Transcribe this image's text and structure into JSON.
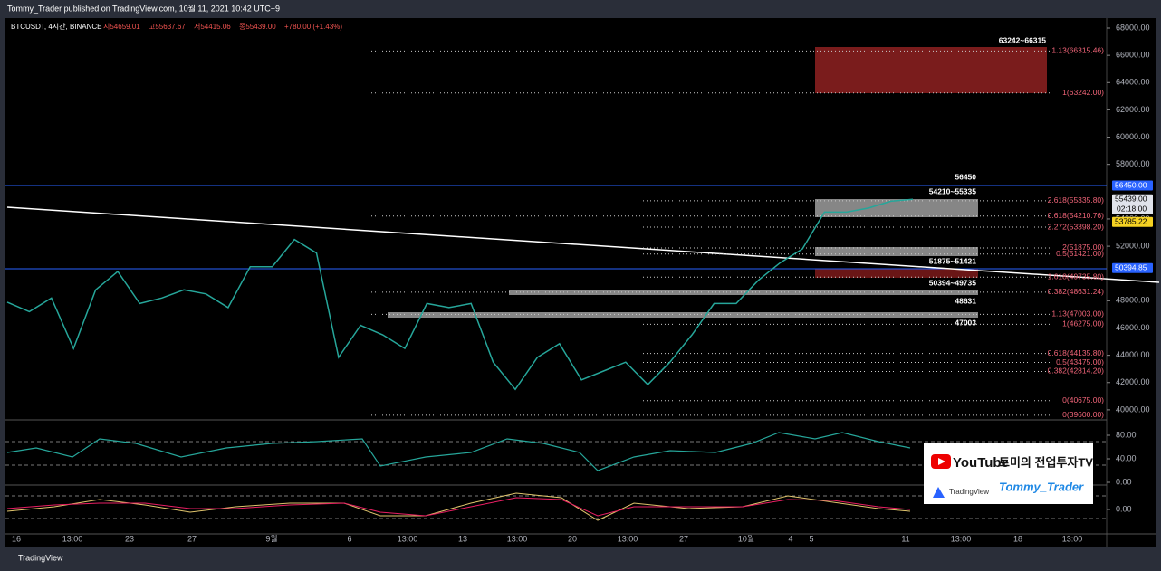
{
  "header": {
    "text": "Tommy_Trader published on TradingView.com, 10월 11, 2021 10:42 UTC+9"
  },
  "chart_data": {
    "type": "line",
    "symbol": "BTCUSDT, 4시간, BINANCE",
    "ohlc": [
      "시54659.01",
      "고55637.67",
      "저54415.06",
      "종55439.00"
    ],
    "change": "+780.00 (+1.43%)",
    "values": [
      47900,
      47200,
      48200,
      44500,
      48800,
      50150,
      47800,
      48200,
      48800,
      48500,
      47500,
      50500,
      50500,
      52500,
      51500,
      43850,
      46200,
      45500,
      44500,
      47800,
      47500,
      47800,
      43500,
      41500,
      43850,
      44850,
      42200,
      42850,
      43500,
      41850,
      43500,
      45500,
      47800,
      47800,
      49500,
      50800,
      51800,
      54500,
      54500,
      54800,
      55300,
      55439
    ],
    "color": "#26a69a",
    "ylim": [
      39330,
      68730
    ],
    "yticks": [
      {
        "value": 40000,
        "label": "40000.00"
      },
      {
        "value": 42000,
        "label": "42000.00"
      },
      {
        "value": 44000,
        "label": "44000.00"
      },
      {
        "value": 46000,
        "label": "46000.00"
      },
      {
        "value": 48000,
        "label": "48000.00"
      },
      {
        "value": 52000,
        "label": "52000.00"
      },
      {
        "value": 54000,
        "label": "54000.00"
      },
      {
        "value": 58000,
        "label": "58000.00"
      },
      {
        "value": 60000,
        "label": "60000.00"
      },
      {
        "value": 62000,
        "label": "62000.00"
      },
      {
        "value": 64000,
        "label": "64000.00"
      },
      {
        "value": 66000,
        "label": "66000.00"
      },
      {
        "value": 68000,
        "label": "68000.00"
      }
    ],
    "price_labels": [
      {
        "value": 56450,
        "label": "56450.00",
        "color": "#2962ff"
      },
      {
        "value": 55439,
        "label": "55439.00",
        "color": "#e0e3eb"
      },
      {
        "value": 53785.22,
        "label": "53785.22",
        "color": "#f5d223"
      },
      {
        "value": 50394.85,
        "label": "50394.85",
        "color": "#2962ff"
      }
    ],
    "countdown": "02:18:00",
    "levels": [
      {
        "value": 66315.46,
        "label": "1.13(66315.46)"
      },
      {
        "value": 63242,
        "label": "1(63242.00)"
      },
      {
        "value": 55335.8,
        "label": "2.618(55335.80)"
      },
      {
        "value": 54210.76,
        "label": "0.618(54210.76)"
      },
      {
        "value": 53398.2,
        "label": "2.272(53398.20)"
      },
      {
        "value": 51875,
        "label": "2(51875.00)"
      },
      {
        "value": 51421,
        "label": "0.5(51421.00)"
      },
      {
        "value": 49735.8,
        "label": "1.618(49735.80)"
      },
      {
        "value": 48631.24,
        "label": "0.382(48631.24)"
      },
      {
        "value": 47003,
        "label": "1.13(47003.00)"
      },
      {
        "value": 46275,
        "label": "1(46275.00)"
      },
      {
        "value": 44135.8,
        "label": "0.618(44135.80)"
      },
      {
        "value": 43475,
        "label": "0.5(43475.00)"
      },
      {
        "value": 42814.2,
        "label": "0.382(42814.20)"
      },
      {
        "value": 40675,
        "label": "0(40675.00)"
      },
      {
        "value": 39600,
        "label": "0(39600.00)"
      }
    ],
    "zones": [
      "63242~66315",
      "56450",
      "54210~55335",
      "51875~51421",
      "50394~49735",
      "48631",
      "47003"
    ],
    "x_labels": [
      "16",
      "13:00",
      "23",
      "27",
      "9월",
      "6",
      "13:00",
      "13",
      "13:00",
      "20",
      "13:00",
      "27",
      "10월",
      "4",
      "5",
      "11",
      "13:00",
      "18",
      "13:00"
    ],
    "rsi_ticks": [
      {
        "value": 80,
        "label": "80.00"
      },
      {
        "value": 40,
        "label": "40.00"
      },
      {
        "value": 0,
        "label": "0.00"
      }
    ],
    "macd_ticks": [
      {
        "value": 0,
        "label": "0.00"
      }
    ]
  },
  "watermark": {
    "youtube": "YouTube",
    "channel": "토미의 전업투자TV",
    "tradingview": "TradingView",
    "author": "Tommy_Trader"
  },
  "footer": {
    "brand": "TradingView"
  }
}
